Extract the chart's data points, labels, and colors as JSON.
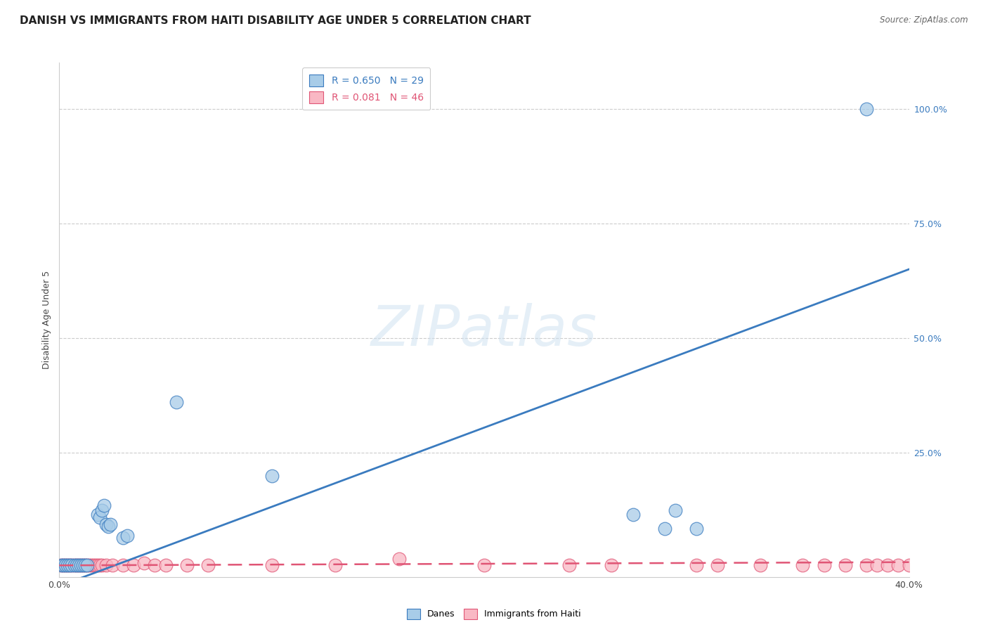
{
  "title": "DANISH VS IMMIGRANTS FROM HAITI DISABILITY AGE UNDER 5 CORRELATION CHART",
  "source": "Source: ZipAtlas.com",
  "ylabel": "Disability Age Under 5",
  "watermark": "ZIPatlas",
  "danes_R": 0.65,
  "danes_N": 29,
  "haiti_R": 0.081,
  "haiti_N": 46,
  "danes_color": "#a8cce8",
  "haiti_color": "#f9b8c4",
  "trendline_danes_color": "#3a7bbf",
  "trendline_haiti_color": "#e05575",
  "ytick_labels": [
    "100.0%",
    "75.0%",
    "50.0%",
    "25.0%"
  ],
  "ytick_values": [
    1.0,
    0.75,
    0.5,
    0.25
  ],
  "xlim": [
    0.0,
    0.4
  ],
  "ylim": [
    -0.02,
    1.1
  ],
  "danes_trendline_x0": 0.0,
  "danes_trendline_y0": -0.04,
  "danes_trendline_x1": 0.4,
  "danes_trendline_y1": 0.65,
  "haiti_trendline_x0": 0.0,
  "haiti_trendline_y0": 0.005,
  "haiti_trendline_x1": 0.4,
  "haiti_trendline_y1": 0.012,
  "danes_x": [
    0.001,
    0.002,
    0.003,
    0.004,
    0.005,
    0.006,
    0.007,
    0.008,
    0.009,
    0.01,
    0.011,
    0.012,
    0.013,
    0.018,
    0.019,
    0.02,
    0.021,
    0.022,
    0.023,
    0.024,
    0.03,
    0.032,
    0.055,
    0.1,
    0.27,
    0.29,
    0.285,
    0.3,
    0.38
  ],
  "danes_y": [
    0.005,
    0.005,
    0.005,
    0.005,
    0.005,
    0.005,
    0.005,
    0.005,
    0.005,
    0.005,
    0.005,
    0.005,
    0.005,
    0.115,
    0.11,
    0.125,
    0.135,
    0.095,
    0.09,
    0.095,
    0.065,
    0.07,
    0.36,
    0.2,
    0.115,
    0.125,
    0.085,
    0.085,
    1.0
  ],
  "haiti_x": [
    0.001,
    0.002,
    0.003,
    0.004,
    0.005,
    0.006,
    0.007,
    0.008,
    0.009,
    0.01,
    0.011,
    0.012,
    0.013,
    0.014,
    0.015,
    0.016,
    0.017,
    0.018,
    0.019,
    0.02,
    0.022,
    0.025,
    0.03,
    0.035,
    0.04,
    0.045,
    0.05,
    0.06,
    0.07,
    0.1,
    0.13,
    0.16,
    0.2,
    0.24,
    0.26,
    0.3,
    0.31,
    0.33,
    0.35,
    0.36,
    0.37,
    0.38,
    0.385,
    0.39,
    0.395,
    0.4
  ],
  "haiti_y": [
    0.005,
    0.005,
    0.005,
    0.005,
    0.005,
    0.005,
    0.005,
    0.005,
    0.005,
    0.005,
    0.005,
    0.005,
    0.005,
    0.005,
    0.005,
    0.005,
    0.005,
    0.005,
    0.005,
    0.005,
    0.005,
    0.005,
    0.005,
    0.005,
    0.01,
    0.005,
    0.005,
    0.005,
    0.005,
    0.005,
    0.005,
    0.02,
    0.005,
    0.005,
    0.005,
    0.005,
    0.005,
    0.005,
    0.005,
    0.005,
    0.005,
    0.005,
    0.005,
    0.005,
    0.005,
    0.005
  ],
  "grid_color": "#cccccc",
  "bg_color": "#ffffff",
  "title_fontsize": 11,
  "label_fontsize": 9,
  "legend_fontsize": 10
}
